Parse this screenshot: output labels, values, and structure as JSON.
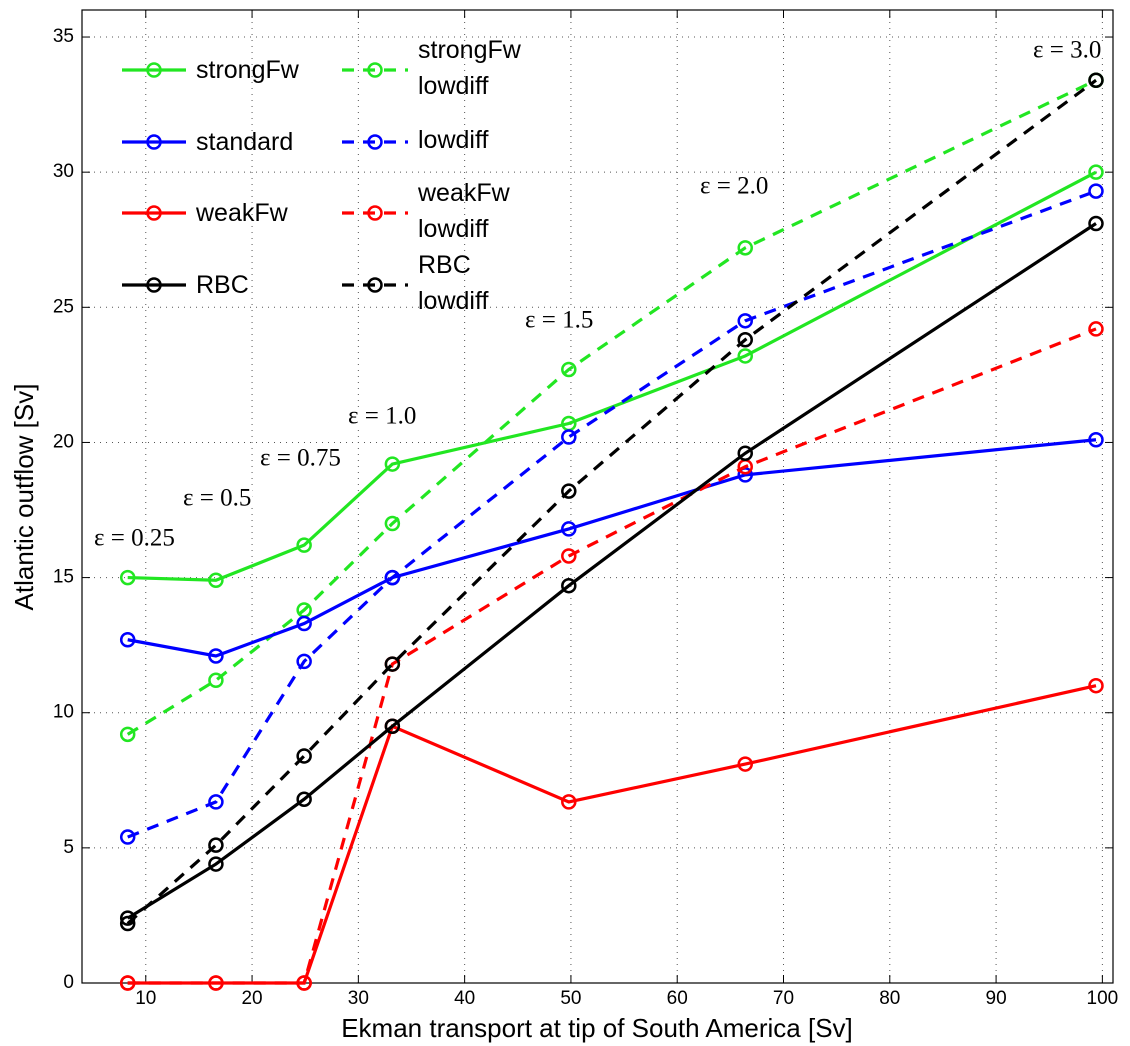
{
  "chart_data": {
    "type": "line",
    "x_label": "Ekman transport at tip of South America [Sv]",
    "y_label": "Atlantic outflow [Sv]",
    "x": [
      8.3,
      16.6,
      24.9,
      33.2,
      49.8,
      66.4,
      99.4
    ],
    "xlim": [
      4,
      101
    ],
    "xticks": [
      10,
      20,
      30,
      40,
      50,
      60,
      70,
      80,
      90,
      100
    ],
    "ylim": [
      0,
      36
    ],
    "yticks": [
      0,
      5,
      10,
      15,
      20,
      25,
      30,
      35
    ],
    "grid": true,
    "series": [
      {
        "name": "strongFw",
        "color": "#22e622",
        "dashed": false,
        "values": [
          15.0,
          14.9,
          16.2,
          19.2,
          20.7,
          23.2,
          30.0
        ]
      },
      {
        "name": "strongFw lowdiff",
        "color": "#22e622",
        "dashed": true,
        "values": [
          9.2,
          11.2,
          13.8,
          17.0,
          22.7,
          27.2,
          33.4
        ]
      },
      {
        "name": "standard",
        "color": "#0000ff",
        "dashed": false,
        "values": [
          12.7,
          12.1,
          13.3,
          15.0,
          16.8,
          18.8,
          20.1
        ]
      },
      {
        "name": "lowdiff",
        "color": "#0000ff",
        "dashed": true,
        "values": [
          5.4,
          6.7,
          11.9,
          15.0,
          20.2,
          24.5,
          29.3
        ]
      },
      {
        "name": "weakFw",
        "color": "#ff0000",
        "dashed": false,
        "values": [
          0,
          0,
          0,
          9.5,
          6.7,
          8.1,
          11.0
        ]
      },
      {
        "name": "weakFw lowdiff",
        "color": "#ff0000",
        "dashed": true,
        "values": [
          0,
          0,
          0,
          11.8,
          15.8,
          19.1,
          24.2
        ]
      },
      {
        "name": "RBC",
        "color": "#000000",
        "dashed": false,
        "values": [
          2.4,
          4.4,
          6.8,
          9.5,
          14.7,
          19.6,
          28.1
        ]
      },
      {
        "name": "RBC lowdiff",
        "color": "#000000",
        "dashed": true,
        "values": [
          2.2,
          5.1,
          8.4,
          11.8,
          18.2,
          23.8,
          33.4
        ]
      }
    ],
    "annotations": [
      "ε = 0.25",
      "ε = 0.5",
      "ε = 0.75",
      "ε = 1.0",
      "ε = 1.5",
      "ε = 2.0",
      "ε = 3.0"
    ]
  }
}
